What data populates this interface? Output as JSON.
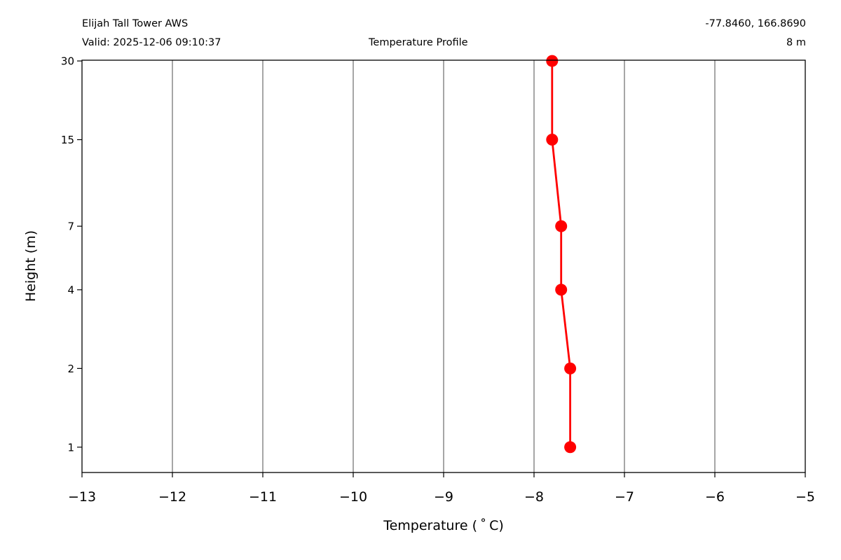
{
  "header": {
    "station": "Elijah Tall Tower AWS",
    "valid": "Valid: 2025-12-06 09:10:37",
    "title": "Temperature Profile",
    "coords": "-77.8460, 166.8690",
    "elevation": "8 m"
  },
  "chart_data": {
    "type": "line",
    "title": "Temperature Profile",
    "xlabel": "Temperature ($^\\circ$C)",
    "xlabel_display": "Temperature ( ˚ C)",
    "ylabel": "Height (m)",
    "xlim": [
      -13,
      -5
    ],
    "ylim": [
      0.8,
      30.2
    ],
    "x_ticks": [
      -13,
      -12,
      -11,
      -10,
      -9,
      -8,
      -7,
      -6,
      -5
    ],
    "x_tick_labels": [
      "−13",
      "−12",
      "−11",
      "−10",
      "−9",
      "−8",
      "−7",
      "−6",
      "−5"
    ],
    "y_ticks": [
      1,
      2,
      4,
      7,
      15,
      30
    ],
    "y_tick_labels": [
      "1",
      "2",
      "4",
      "7",
      "15",
      "30"
    ],
    "y_scale": "log",
    "grid": "x-major",
    "series": [
      {
        "color": "#ff0000",
        "points": [
          {
            "height": 1,
            "temperature": -7.6
          },
          {
            "height": 2,
            "temperature": -7.6
          },
          {
            "height": 4,
            "temperature": -7.7
          },
          {
            "height": 7,
            "temperature": -7.7
          },
          {
            "height": 15,
            "temperature": -7.8
          },
          {
            "height": 30,
            "temperature": -7.8
          }
        ]
      }
    ],
    "colors": {
      "grid": "#808080",
      "axis": "#000000"
    }
  }
}
